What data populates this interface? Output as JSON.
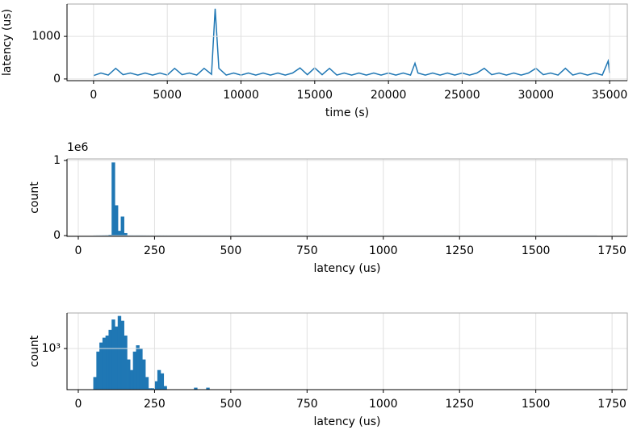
{
  "chart_data": [
    {
      "type": "line",
      "xlabel": "time (s)",
      "ylabel": "latency (us)",
      "color": "#1f77b4",
      "grid": true,
      "x": [
        0,
        500,
        1000,
        1500,
        2000,
        2500,
        3000,
        3500,
        4000,
        4500,
        5000,
        5500,
        6000,
        6500,
        7000,
        7500,
        8000,
        8250,
        8500,
        9000,
        9500,
        10000,
        10500,
        11000,
        11500,
        12000,
        12500,
        13000,
        13500,
        14000,
        14500,
        15000,
        15500,
        16000,
        16500,
        17000,
        17500,
        18000,
        18500,
        19000,
        19500,
        20000,
        20500,
        21000,
        21500,
        21800,
        22000,
        22500,
        23000,
        23500,
        24000,
        24500,
        25000,
        25500,
        26000,
        26500,
        27000,
        27500,
        28000,
        28500,
        29000,
        29500,
        30000,
        30500,
        31000,
        31500,
        32000,
        32500,
        33000,
        33500,
        34000,
        34500,
        34900,
        35000
      ],
      "values": [
        80,
        140,
        90,
        250,
        100,
        140,
        90,
        140,
        90,
        140,
        90,
        250,
        100,
        140,
        90,
        250,
        110,
        1650,
        250,
        90,
        140,
        90,
        140,
        90,
        140,
        90,
        140,
        90,
        140,
        260,
        100,
        260,
        100,
        250,
        90,
        140,
        90,
        140,
        90,
        140,
        90,
        140,
        90,
        140,
        90,
        370,
        140,
        90,
        140,
        90,
        140,
        90,
        140,
        90,
        140,
        250,
        100,
        140,
        90,
        140,
        90,
        140,
        250,
        100,
        140,
        90,
        250,
        90,
        140,
        90,
        140,
        90,
        420,
        140
      ],
      "xlim": [
        -1800,
        36200
      ],
      "xticks": [
        0,
        5000,
        10000,
        15000,
        20000,
        25000,
        30000,
        35000
      ],
      "ylim": [
        -40,
        1760
      ],
      "yticks": [
        0,
        1000
      ]
    },
    {
      "type": "histogram",
      "xlabel": "latency (us)",
      "ylabel": "count",
      "y_offset_label": "1e6",
      "color": "#1f77b4",
      "grid": true,
      "bins": [
        50,
        60,
        70,
        80,
        90,
        100,
        110,
        120,
        130,
        140,
        150,
        160,
        170,
        180,
        190,
        200,
        210,
        220,
        230,
        240,
        250,
        260,
        270,
        280,
        290,
        300,
        400,
        500,
        600,
        700,
        800,
        900,
        1000,
        1100,
        1200,
        1300,
        1400,
        1500,
        1600,
        1700
      ],
      "values": [
        200,
        2000,
        3000,
        3500,
        4000,
        8000,
        970000,
        400000,
        60000,
        250000,
        30000,
        3000,
        2500,
        2000,
        2500,
        2000,
        1500,
        800,
        400,
        300,
        500,
        600,
        400,
        200,
        10,
        5,
        8,
        2,
        2,
        1,
        1,
        1,
        1,
        1,
        1,
        1,
        1,
        1,
        1
      ],
      "xlim": [
        -37,
        1800
      ],
      "xticks": [
        0,
        250,
        500,
        750,
        1000,
        1250,
        1500,
        1750
      ],
      "ylim": [
        -10000,
        1020000
      ],
      "yticks": [
        0,
        {
          "value": 1000000,
          "label": "1"
        }
      ]
    },
    {
      "type": "histogram",
      "xlabel": "latency (us)",
      "ylabel": "count",
      "log_y": true,
      "color": "#1f77b4",
      "grid": true,
      "bins": [
        50,
        60,
        70,
        80,
        90,
        100,
        110,
        120,
        130,
        140,
        150,
        160,
        170,
        180,
        190,
        200,
        210,
        220,
        230,
        240,
        250,
        260,
        270,
        280,
        290,
        380,
        390,
        420,
        430,
        1700
      ],
      "values": [
        400,
        900,
        1200,
        1400,
        1500,
        1800,
        2500,
        2000,
        2800,
        2400,
        1500,
        700,
        500,
        900,
        1100,
        1000,
        700,
        400,
        280,
        280,
        350,
        500,
        450,
        300,
        0,
        285,
        0,
        285,
        0
      ],
      "xlim": [
        -37,
        1800
      ],
      "xticks": [
        0,
        250,
        500,
        750,
        1000,
        1250,
        1500,
        1750
      ],
      "ylim": [
        270,
        3100
      ],
      "yticks": [
        {
          "value": 1000,
          "label": "10³"
        }
      ]
    }
  ]
}
